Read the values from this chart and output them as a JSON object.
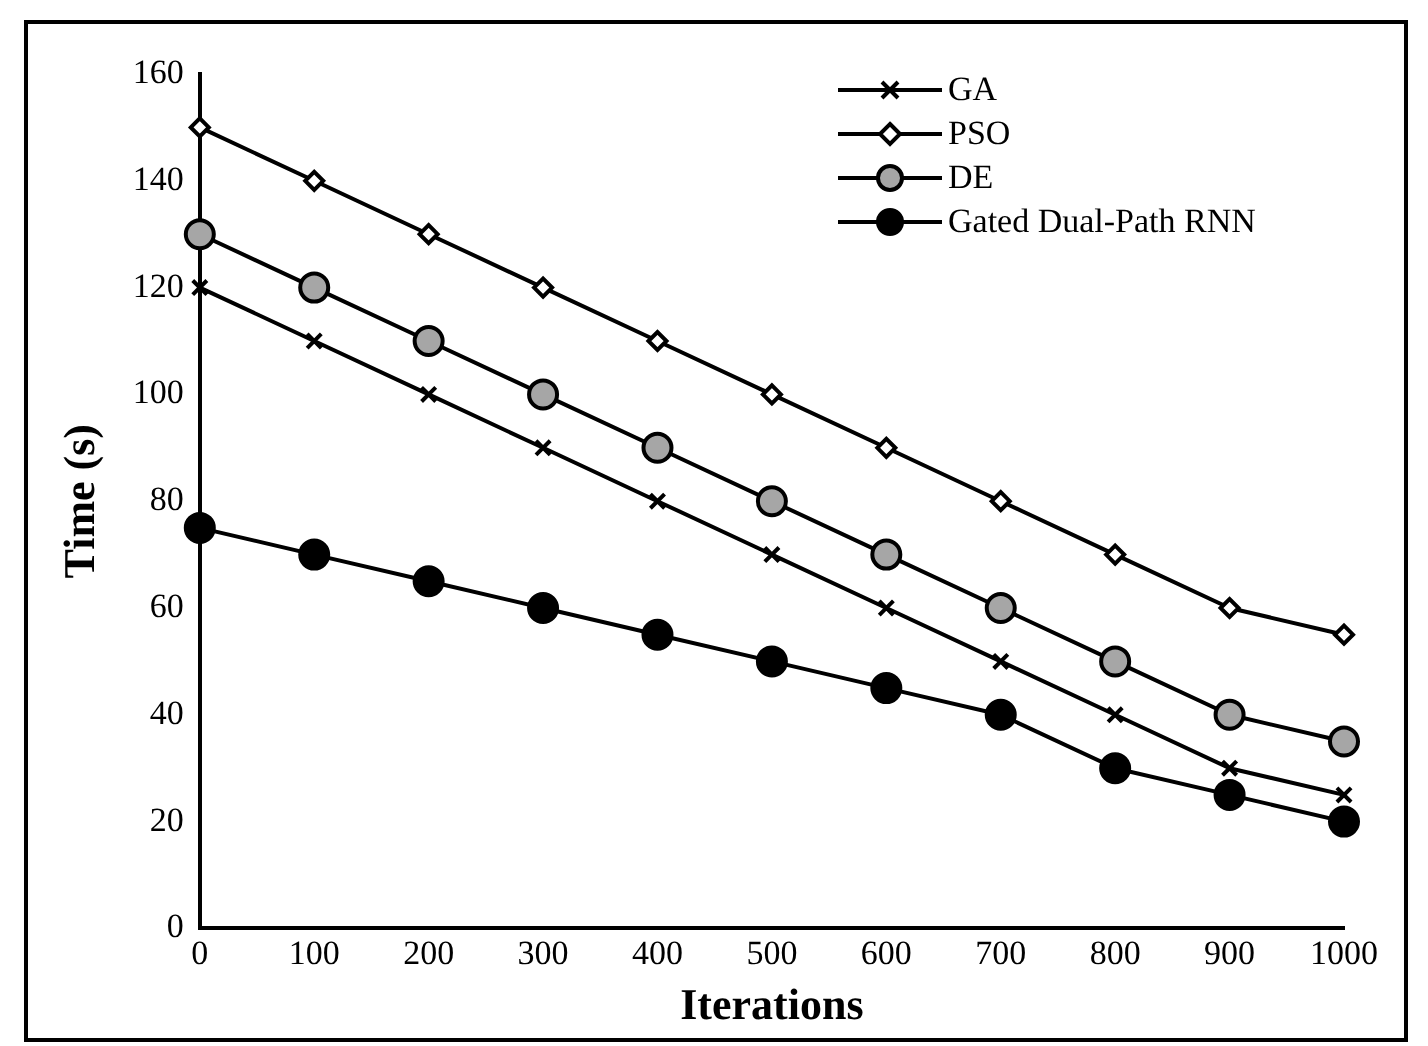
{
  "chart_data": {
    "type": "line",
    "xlabel": "Iterations",
    "ylabel": "Time (s)",
    "x": [
      0,
      100,
      200,
      300,
      400,
      500,
      600,
      700,
      800,
      900,
      1000
    ],
    "xlim": [
      0,
      1000
    ],
    "xticks": [
      0,
      100,
      200,
      300,
      400,
      500,
      600,
      700,
      800,
      900,
      1000
    ],
    "ylim": [
      0,
      160
    ],
    "yticks": [
      0,
      20,
      40,
      60,
      80,
      100,
      120,
      140,
      160
    ],
    "grid": false,
    "legend": "top right",
    "series": [
      {
        "name": "GA",
        "color": "#000000",
        "marker": "cross",
        "values": [
          120,
          110,
          100,
          90,
          80,
          70,
          60,
          50,
          40,
          30,
          25
        ]
      },
      {
        "name": "PSO",
        "color": "#000000",
        "marker": "diamond",
        "values": [
          150,
          140,
          130,
          120,
          110,
          100,
          90,
          80,
          70,
          60,
          55
        ]
      },
      {
        "name": "DE",
        "color": "#000000",
        "marker": "circle",
        "values": [
          130,
          120,
          110,
          100,
          90,
          80,
          70,
          60,
          50,
          40,
          35
        ]
      },
      {
        "name": "Gated Dual-Path RNN",
        "color": "#000000",
        "marker": "circle",
        "values": [
          75,
          70,
          65,
          60,
          55,
          50,
          45,
          40,
          30,
          25,
          20
        ]
      }
    ]
  }
}
